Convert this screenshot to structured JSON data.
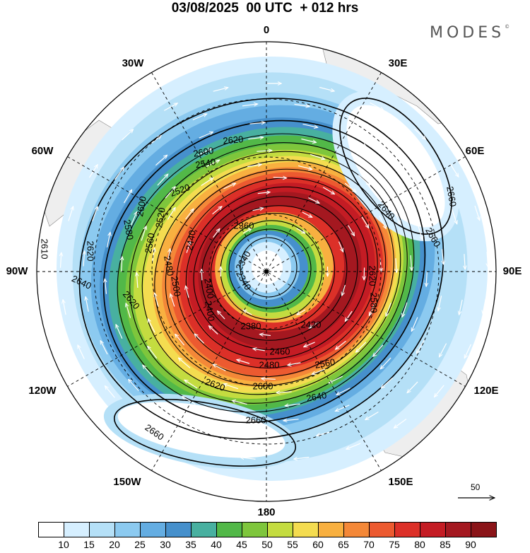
{
  "header": {
    "title": "03/08/2025  00 UTC  + 012 hrs",
    "brand": "MODES",
    "brand_mark": "©"
  },
  "map": {
    "projection": "south-polar-stereographic",
    "longitude_labels": [
      "0",
      "30E",
      "60E",
      "90E",
      "120E",
      "150E",
      "180",
      "150W",
      "120W",
      "90W",
      "60W",
      "30W"
    ],
    "contour_labels": [
      "2340",
      "2360",
      "2380",
      "2400",
      "2420",
      "2440",
      "2460",
      "2480",
      "2500",
      "2520",
      "2540",
      "2560",
      "2580",
      "2600",
      "2610",
      "2620",
      "2640",
      "2660"
    ],
    "reference_vector": "50",
    "colors": {
      "land": "#eeeeee",
      "contour": "#000000",
      "wind_arrows": "#ffffff"
    }
  },
  "colorbar": {
    "ticks": [
      "10",
      "15",
      "20",
      "25",
      "30",
      "35",
      "40",
      "45",
      "50",
      "55",
      "60",
      "65",
      "70",
      "75",
      "80",
      "85",
      "90"
    ],
    "colors": [
      "#ffffff",
      "#d6efff",
      "#b5e0f7",
      "#8ccaf0",
      "#64ade2",
      "#4690cc",
      "#48b0a0",
      "#52b848",
      "#7ec63c",
      "#c4dc40",
      "#f4dc50",
      "#f8b040",
      "#f48838",
      "#ec5a30",
      "#dc3028",
      "#c41c24",
      "#a41820",
      "#8a1418"
    ]
  }
}
